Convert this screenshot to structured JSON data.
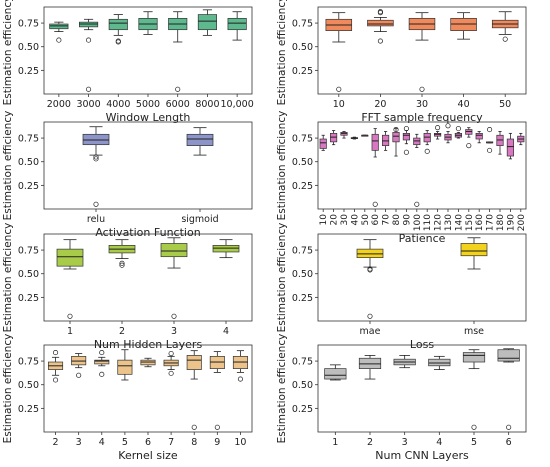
{
  "chart_data": [
    {
      "type": "box",
      "ylabel": "Estimation efficiency",
      "xlabel": "Window Length",
      "yticks": [
        0.25,
        0.5,
        0.75
      ],
      "ylim": [
        0.0,
        0.92
      ],
      "color": "#5fb98f",
      "categories": [
        "2000",
        "3000",
        "4000",
        "5000",
        "6000",
        "8000",
        "10,000"
      ],
      "boxes": [
        {
          "whislo": 0.66,
          "q1": 0.69,
          "med": 0.72,
          "q3": 0.74,
          "whishi": 0.76,
          "fliers": [
            0.57
          ]
        },
        {
          "whislo": 0.68,
          "q1": 0.71,
          "med": 0.74,
          "q3": 0.76,
          "whishi": 0.79,
          "fliers": [
            0.57,
            0.05
          ]
        },
        {
          "whislo": 0.62,
          "q1": 0.68,
          "med": 0.75,
          "q3": 0.79,
          "whishi": 0.84,
          "fliers": [
            0.56,
            0.55
          ]
        },
        {
          "whislo": 0.63,
          "q1": 0.68,
          "med": 0.74,
          "q3": 0.8,
          "whishi": 0.87,
          "fliers": []
        },
        {
          "whislo": 0.55,
          "q1": 0.68,
          "med": 0.74,
          "q3": 0.8,
          "whishi": 0.87,
          "fliers": [
            0.05
          ]
        },
        {
          "whislo": 0.62,
          "q1": 0.68,
          "med": 0.77,
          "q3": 0.84,
          "whishi": 0.89,
          "fliers": []
        },
        {
          "whislo": 0.57,
          "q1": 0.68,
          "med": 0.75,
          "q3": 0.8,
          "whishi": 0.87,
          "fliers": []
        }
      ]
    },
    {
      "type": "box",
      "ylabel": "Estimation efficiency",
      "xlabel": "FFT sample frequency",
      "yticks": [
        0.25,
        0.5,
        0.75
      ],
      "ylim": [
        0.0,
        0.92
      ],
      "color": "#f08a5d",
      "categories": [
        "10",
        "20",
        "30",
        "40",
        "50"
      ],
      "boxes": [
        {
          "whislo": 0.55,
          "q1": 0.67,
          "med": 0.73,
          "q3": 0.79,
          "whishi": 0.86,
          "fliers": [
            0.05
          ]
        },
        {
          "whislo": 0.66,
          "q1": 0.72,
          "med": 0.74,
          "q3": 0.78,
          "whishi": 0.81,
          "fliers": [
            0.86,
            0.87,
            0.56
          ]
        },
        {
          "whislo": 0.57,
          "q1": 0.68,
          "med": 0.74,
          "q3": 0.8,
          "whishi": 0.86,
          "fliers": [
            0.05
          ]
        },
        {
          "whislo": 0.58,
          "q1": 0.67,
          "med": 0.74,
          "q3": 0.8,
          "whishi": 0.86,
          "fliers": []
        },
        {
          "whislo": 0.63,
          "q1": 0.7,
          "med": 0.74,
          "q3": 0.78,
          "whishi": 0.87,
          "fliers": [
            0.58
          ]
        }
      ]
    },
    {
      "type": "box",
      "ylabel": "Estimation efficiency",
      "xlabel": "Activation Function",
      "yticks": [
        0.25,
        0.5,
        0.75
      ],
      "ylim": [
        0.0,
        0.92
      ],
      "color": "#8c94c8",
      "categories": [
        "relu",
        "sigmoid"
      ],
      "boxes": [
        {
          "whislo": 0.57,
          "q1": 0.68,
          "med": 0.73,
          "q3": 0.79,
          "whishi": 0.87,
          "fliers": [
            0.55,
            0.53,
            0.05
          ]
        },
        {
          "whislo": 0.57,
          "q1": 0.67,
          "med": 0.74,
          "q3": 0.79,
          "whishi": 0.86,
          "fliers": []
        }
      ]
    },
    {
      "type": "box",
      "ylabel": "Estimation efficiency",
      "xlabel": "Patience",
      "yticks": [
        0.25,
        0.5,
        0.75
      ],
      "ylim": [
        0.0,
        0.92
      ],
      "color": "#d878c0",
      "categories": [
        "10",
        "20",
        "30",
        "40",
        "50",
        "60",
        "70",
        "80",
        "90",
        "100",
        "110",
        "120",
        "130",
        "140",
        "150",
        "160",
        "170",
        "180",
        "190",
        "200"
      ],
      "boxes": [
        {
          "whislo": 0.62,
          "q1": 0.64,
          "med": 0.7,
          "q3": 0.74,
          "whishi": 0.78,
          "fliers": []
        },
        {
          "whislo": 0.68,
          "q1": 0.71,
          "med": 0.76,
          "q3": 0.8,
          "whishi": 0.83,
          "fliers": []
        },
        {
          "whislo": 0.75,
          "q1": 0.78,
          "med": 0.8,
          "q3": 0.81,
          "whishi": 0.82,
          "fliers": []
        },
        {
          "whislo": 0.74,
          "q1": 0.745,
          "med": 0.75,
          "q3": 0.755,
          "whishi": 0.76,
          "fliers": []
        },
        {
          "whislo": 0.78,
          "q1": 0.78,
          "med": 0.78,
          "q3": 0.78,
          "whishi": 0.78,
          "fliers": []
        },
        {
          "whislo": 0.55,
          "q1": 0.62,
          "med": 0.72,
          "q3": 0.79,
          "whishi": 0.85,
          "fliers": [
            0.05
          ]
        },
        {
          "whislo": 0.62,
          "q1": 0.67,
          "med": 0.72,
          "q3": 0.78,
          "whishi": 0.82,
          "fliers": []
        },
        {
          "whislo": 0.56,
          "q1": 0.71,
          "med": 0.77,
          "q3": 0.81,
          "whishi": 0.85,
          "fliers": [
            0.84
          ]
        },
        {
          "whislo": 0.69,
          "q1": 0.73,
          "med": 0.78,
          "q3": 0.8,
          "whishi": 0.83,
          "fliers": [
            0.85,
            0.6
          ]
        },
        {
          "whislo": 0.65,
          "q1": 0.68,
          "med": 0.72,
          "q3": 0.75,
          "whishi": 0.79,
          "fliers": [
            0.05
          ]
        },
        {
          "whislo": 0.68,
          "q1": 0.71,
          "med": 0.76,
          "q3": 0.8,
          "whishi": 0.83,
          "fliers": [
            0.61
          ]
        },
        {
          "whislo": 0.74,
          "q1": 0.77,
          "med": 0.79,
          "q3": 0.8,
          "whishi": 0.82,
          "fliers": [
            0.86
          ]
        },
        {
          "whislo": 0.7,
          "q1": 0.73,
          "med": 0.76,
          "q3": 0.79,
          "whishi": 0.82,
          "fliers": [
            0.88
          ]
        },
        {
          "whislo": 0.75,
          "q1": 0.76,
          "med": 0.78,
          "q3": 0.8,
          "whishi": 0.81,
          "fliers": [
            0.85
          ]
        },
        {
          "whislo": 0.76,
          "q1": 0.79,
          "med": 0.82,
          "q3": 0.84,
          "whishi": 0.86,
          "fliers": [
            0.67
          ]
        },
        {
          "whislo": 0.7,
          "q1": 0.74,
          "med": 0.78,
          "q3": 0.8,
          "whishi": 0.82,
          "fliers": []
        },
        {
          "whislo": 0.7,
          "q1": 0.7,
          "med": 0.7,
          "q3": 0.71,
          "whishi": 0.71,
          "fliers": [
            0.84,
            0.62
          ]
        },
        {
          "whislo": 0.58,
          "q1": 0.67,
          "med": 0.73,
          "q3": 0.78,
          "whishi": 0.82,
          "fliers": []
        },
        {
          "whislo": 0.53,
          "q1": 0.56,
          "med": 0.66,
          "q3": 0.74,
          "whishi": 0.8,
          "fliers": []
        },
        {
          "whislo": 0.68,
          "q1": 0.71,
          "med": 0.74,
          "q3": 0.77,
          "whishi": 0.8,
          "fliers": []
        }
      ]
    },
    {
      "type": "box",
      "ylabel": "Estimation efficiency",
      "xlabel": "Num Hidden Layers",
      "yticks": [
        0.25,
        0.5,
        0.75
      ],
      "ylim": [
        0.0,
        0.92
      ],
      "color": "#a8cc4a",
      "categories": [
        "1",
        "2",
        "3",
        "4"
      ],
      "boxes": [
        {
          "whislo": 0.55,
          "q1": 0.58,
          "med": 0.68,
          "q3": 0.76,
          "whishi": 0.86,
          "fliers": [
            0.05
          ]
        },
        {
          "whislo": 0.66,
          "q1": 0.72,
          "med": 0.76,
          "q3": 0.8,
          "whishi": 0.86,
          "fliers": [
            0.61,
            0.59
          ]
        },
        {
          "whislo": 0.56,
          "q1": 0.68,
          "med": 0.74,
          "q3": 0.82,
          "whishi": 0.88,
          "fliers": [
            0.05
          ]
        },
        {
          "whislo": 0.67,
          "q1": 0.73,
          "med": 0.77,
          "q3": 0.8,
          "whishi": 0.86,
          "fliers": []
        }
      ]
    },
    {
      "type": "box",
      "ylabel": "Estimation efficiency",
      "xlabel": "Loss",
      "yticks": [
        0.25,
        0.5,
        0.75
      ],
      "ylim": [
        0.0,
        0.92
      ],
      "color": "#f2d21c",
      "categories": [
        "mae",
        "mse"
      ],
      "boxes": [
        {
          "whislo": 0.57,
          "q1": 0.67,
          "med": 0.71,
          "q3": 0.76,
          "whishi": 0.86,
          "fliers": [
            0.55,
            0.54,
            0.05
          ]
        },
        {
          "whislo": 0.55,
          "q1": 0.69,
          "med": 0.74,
          "q3": 0.82,
          "whishi": 0.88,
          "fliers": []
        }
      ]
    },
    {
      "type": "box",
      "ylabel": "Estimation efficiency",
      "xlabel": "Kernel size",
      "yticks": [
        0.25,
        0.5,
        0.75
      ],
      "ylim": [
        0.0,
        0.92
      ],
      "color": "#ecc38a",
      "categories": [
        "2",
        "3",
        "4",
        "5",
        "6",
        "7",
        "8",
        "9",
        "10"
      ],
      "boxes": [
        {
          "whislo": 0.6,
          "q1": 0.66,
          "med": 0.7,
          "q3": 0.74,
          "whishi": 0.79,
          "fliers": [
            0.84,
            0.55
          ]
        },
        {
          "whislo": 0.68,
          "q1": 0.71,
          "med": 0.75,
          "q3": 0.8,
          "whishi": 0.83,
          "fliers": [
            0.6
          ]
        },
        {
          "whislo": 0.7,
          "q1": 0.72,
          "med": 0.75,
          "q3": 0.76,
          "whishi": 0.79,
          "fliers": [
            0.84,
            0.61
          ]
        },
        {
          "whislo": 0.55,
          "q1": 0.61,
          "med": 0.7,
          "q3": 0.76,
          "whishi": 0.87,
          "fliers": []
        },
        {
          "whislo": 0.69,
          "q1": 0.71,
          "med": 0.74,
          "q3": 0.76,
          "whishi": 0.78,
          "fliers": []
        },
        {
          "whislo": 0.66,
          "q1": 0.7,
          "med": 0.73,
          "q3": 0.76,
          "whishi": 0.8,
          "fliers": [
            0.83,
            0.62
          ]
        },
        {
          "whislo": 0.56,
          "q1": 0.66,
          "med": 0.76,
          "q3": 0.81,
          "whishi": 0.86,
          "fliers": [
            0.05
          ]
        },
        {
          "whislo": 0.63,
          "q1": 0.67,
          "med": 0.74,
          "q3": 0.8,
          "whishi": 0.85,
          "fliers": [
            0.05
          ]
        },
        {
          "whislo": 0.63,
          "q1": 0.67,
          "med": 0.74,
          "q3": 0.8,
          "whishi": 0.86,
          "fliers": [
            0.56
          ]
        }
      ]
    },
    {
      "type": "box",
      "ylabel": "Estimation efficiency",
      "xlabel": "Num CNN Layers",
      "yticks": [
        0.25,
        0.5,
        0.75
      ],
      "ylim": [
        0.0,
        0.92
      ],
      "color": "#bdbdbd",
      "categories": [
        "1",
        "2",
        "3",
        "4",
        "5",
        "6"
      ],
      "boxes": [
        {
          "whislo": 0.55,
          "q1": 0.56,
          "med": 0.6,
          "q3": 0.67,
          "whishi": 0.71,
          "fliers": []
        },
        {
          "whislo": 0.56,
          "q1": 0.67,
          "med": 0.72,
          "q3": 0.78,
          "whishi": 0.81,
          "fliers": []
        },
        {
          "whislo": 0.68,
          "q1": 0.71,
          "med": 0.74,
          "q3": 0.77,
          "whishi": 0.81,
          "fliers": []
        },
        {
          "whislo": 0.66,
          "q1": 0.7,
          "med": 0.73,
          "q3": 0.77,
          "whishi": 0.8,
          "fliers": []
        },
        {
          "whislo": 0.67,
          "q1": 0.74,
          "med": 0.81,
          "q3": 0.84,
          "whishi": 0.87,
          "fliers": [
            0.05
          ]
        },
        {
          "whislo": 0.74,
          "q1": 0.75,
          "med": 0.78,
          "q3": 0.87,
          "whishi": 0.88,
          "fliers": [
            0.05
          ]
        }
      ]
    }
  ]
}
